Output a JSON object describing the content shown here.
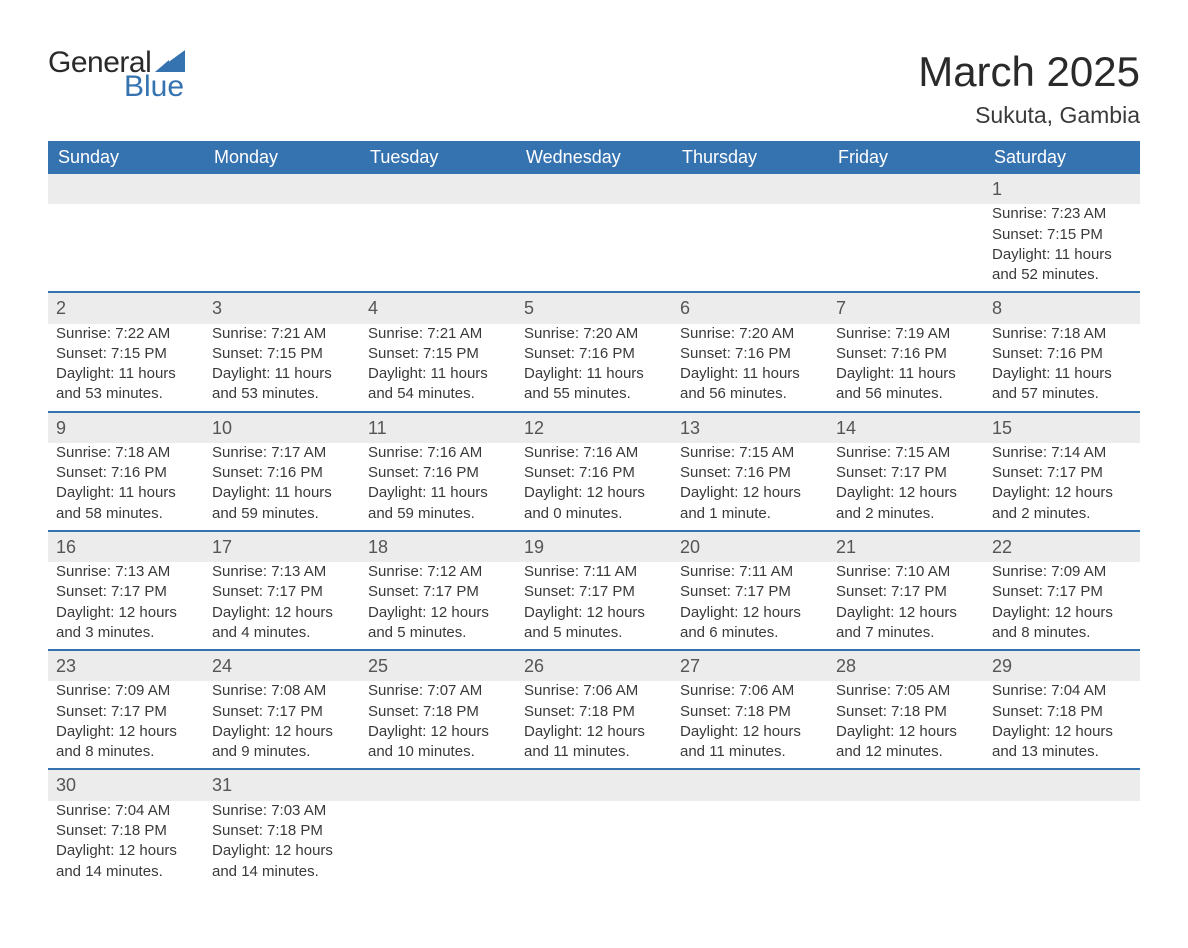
{
  "brand": {
    "general": "General",
    "blue": "Blue",
    "logo_color": "#3572b0"
  },
  "title": "March 2025",
  "location": "Sukuta, Gambia",
  "colors": {
    "header_bg": "#3572b0",
    "header_text": "#ffffff",
    "daynum_bg": "#ececec",
    "row_divider": "#3572b0",
    "body_text": "#3a3a3a",
    "page_bg": "#ffffff"
  },
  "fonts": {
    "family": "Arial",
    "title_size_pt": 32,
    "location_size_pt": 17,
    "header_size_pt": 14,
    "body_size_pt": 11
  },
  "weekdays": [
    "Sunday",
    "Monday",
    "Tuesday",
    "Wednesday",
    "Thursday",
    "Friday",
    "Saturday"
  ],
  "weeks": [
    [
      null,
      null,
      null,
      null,
      null,
      null,
      {
        "n": "1",
        "sr": "Sunrise: 7:23 AM",
        "ss": "Sunset: 7:15 PM",
        "d1": "Daylight: 11 hours",
        "d2": "and 52 minutes."
      }
    ],
    [
      {
        "n": "2",
        "sr": "Sunrise: 7:22 AM",
        "ss": "Sunset: 7:15 PM",
        "d1": "Daylight: 11 hours",
        "d2": "and 53 minutes."
      },
      {
        "n": "3",
        "sr": "Sunrise: 7:21 AM",
        "ss": "Sunset: 7:15 PM",
        "d1": "Daylight: 11 hours",
        "d2": "and 53 minutes."
      },
      {
        "n": "4",
        "sr": "Sunrise: 7:21 AM",
        "ss": "Sunset: 7:15 PM",
        "d1": "Daylight: 11 hours",
        "d2": "and 54 minutes."
      },
      {
        "n": "5",
        "sr": "Sunrise: 7:20 AM",
        "ss": "Sunset: 7:16 PM",
        "d1": "Daylight: 11 hours",
        "d2": "and 55 minutes."
      },
      {
        "n": "6",
        "sr": "Sunrise: 7:20 AM",
        "ss": "Sunset: 7:16 PM",
        "d1": "Daylight: 11 hours",
        "d2": "and 56 minutes."
      },
      {
        "n": "7",
        "sr": "Sunrise: 7:19 AM",
        "ss": "Sunset: 7:16 PM",
        "d1": "Daylight: 11 hours",
        "d2": "and 56 minutes."
      },
      {
        "n": "8",
        "sr": "Sunrise: 7:18 AM",
        "ss": "Sunset: 7:16 PM",
        "d1": "Daylight: 11 hours",
        "d2": "and 57 minutes."
      }
    ],
    [
      {
        "n": "9",
        "sr": "Sunrise: 7:18 AM",
        "ss": "Sunset: 7:16 PM",
        "d1": "Daylight: 11 hours",
        "d2": "and 58 minutes."
      },
      {
        "n": "10",
        "sr": "Sunrise: 7:17 AM",
        "ss": "Sunset: 7:16 PM",
        "d1": "Daylight: 11 hours",
        "d2": "and 59 minutes."
      },
      {
        "n": "11",
        "sr": "Sunrise: 7:16 AM",
        "ss": "Sunset: 7:16 PM",
        "d1": "Daylight: 11 hours",
        "d2": "and 59 minutes."
      },
      {
        "n": "12",
        "sr": "Sunrise: 7:16 AM",
        "ss": "Sunset: 7:16 PM",
        "d1": "Daylight: 12 hours",
        "d2": "and 0 minutes."
      },
      {
        "n": "13",
        "sr": "Sunrise: 7:15 AM",
        "ss": "Sunset: 7:16 PM",
        "d1": "Daylight: 12 hours",
        "d2": "and 1 minute."
      },
      {
        "n": "14",
        "sr": "Sunrise: 7:15 AM",
        "ss": "Sunset: 7:17 PM",
        "d1": "Daylight: 12 hours",
        "d2": "and 2 minutes."
      },
      {
        "n": "15",
        "sr": "Sunrise: 7:14 AM",
        "ss": "Sunset: 7:17 PM",
        "d1": "Daylight: 12 hours",
        "d2": "and 2 minutes."
      }
    ],
    [
      {
        "n": "16",
        "sr": "Sunrise: 7:13 AM",
        "ss": "Sunset: 7:17 PM",
        "d1": "Daylight: 12 hours",
        "d2": "and 3 minutes."
      },
      {
        "n": "17",
        "sr": "Sunrise: 7:13 AM",
        "ss": "Sunset: 7:17 PM",
        "d1": "Daylight: 12 hours",
        "d2": "and 4 minutes."
      },
      {
        "n": "18",
        "sr": "Sunrise: 7:12 AM",
        "ss": "Sunset: 7:17 PM",
        "d1": "Daylight: 12 hours",
        "d2": "and 5 minutes."
      },
      {
        "n": "19",
        "sr": "Sunrise: 7:11 AM",
        "ss": "Sunset: 7:17 PM",
        "d1": "Daylight: 12 hours",
        "d2": "and 5 minutes."
      },
      {
        "n": "20",
        "sr": "Sunrise: 7:11 AM",
        "ss": "Sunset: 7:17 PM",
        "d1": "Daylight: 12 hours",
        "d2": "and 6 minutes."
      },
      {
        "n": "21",
        "sr": "Sunrise: 7:10 AM",
        "ss": "Sunset: 7:17 PM",
        "d1": "Daylight: 12 hours",
        "d2": "and 7 minutes."
      },
      {
        "n": "22",
        "sr": "Sunrise: 7:09 AM",
        "ss": "Sunset: 7:17 PM",
        "d1": "Daylight: 12 hours",
        "d2": "and 8 minutes."
      }
    ],
    [
      {
        "n": "23",
        "sr": "Sunrise: 7:09 AM",
        "ss": "Sunset: 7:17 PM",
        "d1": "Daylight: 12 hours",
        "d2": "and 8 minutes."
      },
      {
        "n": "24",
        "sr": "Sunrise: 7:08 AM",
        "ss": "Sunset: 7:17 PM",
        "d1": "Daylight: 12 hours",
        "d2": "and 9 minutes."
      },
      {
        "n": "25",
        "sr": "Sunrise: 7:07 AM",
        "ss": "Sunset: 7:18 PM",
        "d1": "Daylight: 12 hours",
        "d2": "and 10 minutes."
      },
      {
        "n": "26",
        "sr": "Sunrise: 7:06 AM",
        "ss": "Sunset: 7:18 PM",
        "d1": "Daylight: 12 hours",
        "d2": "and 11 minutes."
      },
      {
        "n": "27",
        "sr": "Sunrise: 7:06 AM",
        "ss": "Sunset: 7:18 PM",
        "d1": "Daylight: 12 hours",
        "d2": "and 11 minutes."
      },
      {
        "n": "28",
        "sr": "Sunrise: 7:05 AM",
        "ss": "Sunset: 7:18 PM",
        "d1": "Daylight: 12 hours",
        "d2": "and 12 minutes."
      },
      {
        "n": "29",
        "sr": "Sunrise: 7:04 AM",
        "ss": "Sunset: 7:18 PM",
        "d1": "Daylight: 12 hours",
        "d2": "and 13 minutes."
      }
    ],
    [
      {
        "n": "30",
        "sr": "Sunrise: 7:04 AM",
        "ss": "Sunset: 7:18 PM",
        "d1": "Daylight: 12 hours",
        "d2": "and 14 minutes."
      },
      {
        "n": "31",
        "sr": "Sunrise: 7:03 AM",
        "ss": "Sunset: 7:18 PM",
        "d1": "Daylight: 12 hours",
        "d2": "and 14 minutes."
      },
      null,
      null,
      null,
      null,
      null
    ]
  ]
}
